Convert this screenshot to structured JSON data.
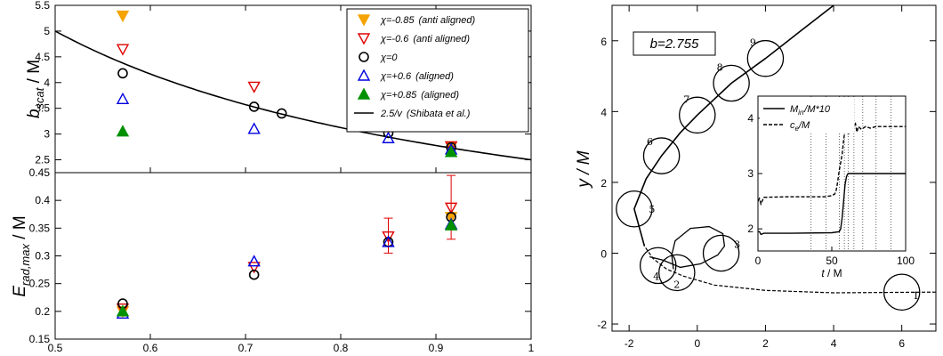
{
  "colors": {
    "chi_m085": "#f5a300",
    "chi_m06": "#e00000",
    "chi_0": "#000000",
    "chi_p06": "#0000e0",
    "chi_p085": "#009000",
    "curve": "#000000"
  },
  "chart_data": [
    {
      "id": "b_scat",
      "type": "scatter",
      "ylabel_main": "b",
      "ylabel_sub": "scat",
      "ylabel_tail": " / M",
      "xlim": [
        0.5,
        1.0
      ],
      "ylim": [
        2.25,
        5.5
      ],
      "yticks": [
        "2.5",
        "3",
        "3.5",
        "4",
        "4.5",
        "5",
        "5.5"
      ],
      "ytick_values": [
        2.5,
        3,
        3.5,
        4,
        4.5,
        5,
        5.5
      ],
      "legend": [
        {
          "chi": "χ=-0.85",
          "note": "(anti aligned)",
          "marker": "tri-down-filled",
          "color_key": "chi_m085"
        },
        {
          "chi": "χ=-0.6",
          "note": "(anti aligned)",
          "marker": "tri-down-open",
          "color_key": "chi_m06"
        },
        {
          "chi": "χ=0",
          "note": "",
          "marker": "circle-open",
          "color_key": "chi_0"
        },
        {
          "chi": "χ=+0.6",
          "note": "(aligned)",
          "marker": "tri-up-open",
          "color_key": "chi_p06"
        },
        {
          "chi": "χ=+0.85",
          "note": "(aligned)",
          "marker": "tri-up-filled",
          "color_key": "chi_p085"
        },
        {
          "chi": "2.5/v",
          "note": "(Shibata et al.)",
          "marker": "line",
          "color_key": "curve"
        }
      ],
      "curve": {
        "formula": "2.5/v",
        "coef": 2.5,
        "x_range": [
          0.5,
          1.0
        ]
      },
      "series": [
        {
          "name": "χ=-0.85",
          "marker": "tri-down-filled",
          "color_key": "chi_m085",
          "x": [
            0.571,
            0.85,
            0.916
          ],
          "y": [
            5.3,
            3.13,
            2.76
          ]
        },
        {
          "name": "χ=-0.6",
          "marker": "tri-down-open",
          "color_key": "chi_m06",
          "x": [
            0.571,
            0.709,
            0.85,
            0.916
          ],
          "y": [
            4.65,
            3.92,
            3.13,
            2.76
          ]
        },
        {
          "name": "χ=0",
          "marker": "circle-open",
          "color_key": "chi_0",
          "x": [
            0.571,
            0.709,
            0.738,
            0.85,
            0.916
          ],
          "y": [
            4.18,
            3.53,
            3.4,
            3.02,
            2.74
          ]
        },
        {
          "name": "χ=+0.6",
          "marker": "tri-up-open",
          "color_key": "chi_p06",
          "x": [
            0.571,
            0.709,
            0.85,
            0.916
          ],
          "y": [
            3.68,
            3.1,
            2.92,
            2.7
          ]
        },
        {
          "name": "χ=+0.85",
          "marker": "tri-up-filled",
          "color_key": "chi_p085",
          "x": [
            0.571,
            0.916
          ],
          "y": [
            3.05,
            2.65
          ]
        }
      ]
    },
    {
      "id": "E_rad",
      "type": "scatter",
      "ylabel_main": "E",
      "ylabel_sub": "rad,max",
      "ylabel_tail": " / M",
      "xlim": [
        0.5,
        1.0
      ],
      "ylim": [
        0.15,
        0.45
      ],
      "xticks": [
        "0.5",
        "0.6",
        "0.7",
        "0.8",
        "0.9",
        "1"
      ],
      "xtick_values": [
        0.5,
        0.6,
        0.7,
        0.8,
        0.9,
        1.0
      ],
      "yticks": [
        "0.15",
        "0.2",
        "0.25",
        "0.3",
        "0.35",
        "0.4",
        "0.45"
      ],
      "ytick_values": [
        0.15,
        0.2,
        0.25,
        0.3,
        0.35,
        0.4,
        0.45
      ],
      "error_bars": [
        {
          "x": 0.85,
          "low": 0.305,
          "high": 0.368,
          "color_key": "chi_m06"
        },
        {
          "x": 0.916,
          "low": 0.33,
          "high": 0.445,
          "color_key": "chi_m06"
        }
      ],
      "series": [
        {
          "name": "χ=-0.85",
          "marker": "tri-down-filled",
          "color_key": "chi_m085",
          "x": [
            0.571,
            0.916
          ],
          "y": [
            0.2,
            0.37
          ]
        },
        {
          "name": "χ=-0.6",
          "marker": "tri-down-open",
          "color_key": "chi_m06",
          "x": [
            0.571,
            0.709,
            0.85,
            0.916
          ],
          "y": [
            0.205,
            0.28,
            0.335,
            0.387
          ]
        },
        {
          "name": "χ=0",
          "marker": "circle-open",
          "color_key": "chi_0",
          "x": [
            0.571,
            0.709,
            0.85,
            0.916
          ],
          "y": [
            0.214,
            0.266,
            0.325,
            0.37
          ]
        },
        {
          "name": "χ=+0.6",
          "marker": "tri-up-open",
          "color_key": "chi_p06",
          "x": [
            0.571,
            0.709,
            0.85,
            0.916
          ],
          "y": [
            0.196,
            0.29,
            0.325,
            0.357
          ]
        },
        {
          "name": "χ=+0.85",
          "marker": "tri-up-filled",
          "color_key": "chi_p085",
          "x": [
            0.571,
            0.916
          ],
          "y": [
            0.2,
            0.355
          ]
        }
      ]
    },
    {
      "id": "trajectory",
      "type": "line",
      "label_box": "b=2.755",
      "xlabel": "",
      "ylabel": "y / M",
      "xlim": [
        -2.5,
        7
      ],
      "ylim": [
        -2.2,
        7
      ],
      "xticks": [
        "-2",
        "0",
        "2",
        "4",
        "6"
      ],
      "xtick_values": [
        -2,
        0,
        2,
        4,
        6
      ],
      "yticks": [
        "-2",
        "0",
        "2",
        "4",
        "6"
      ],
      "ytick_values": [
        -2,
        0,
        2,
        4,
        6
      ],
      "circle_radius": 0.25,
      "markers": [
        {
          "label": "1",
          "x": 6.0,
          "y": -1.1
        },
        {
          "label": "2",
          "x": -0.6,
          "y": -0.55
        },
        {
          "label": "3",
          "x": 0.7,
          "y": 0.0
        },
        {
          "label": "4",
          "x": -1.15,
          "y": -0.35
        },
        {
          "label": "5",
          "x": -1.85,
          "y": 1.25
        },
        {
          "label": "6",
          "x": -1.05,
          "y": 2.75
        },
        {
          "label": "7",
          "x": 0.0,
          "y": 3.9
        },
        {
          "label": "8",
          "x": 1.0,
          "y": 4.8
        },
        {
          "label": "9",
          "x": 2.0,
          "y": 5.5
        }
      ],
      "incoming_path": [
        [
          7,
          -1.1
        ],
        [
          4,
          -1.12
        ],
        [
          2,
          -1.05
        ],
        [
          0.5,
          -0.9
        ],
        [
          -0.4,
          -0.65
        ],
        [
          -0.9,
          -0.45
        ],
        [
          -1.3,
          -0.15
        ],
        [
          -1.55,
          0.2
        ]
      ],
      "outgoing_path": [
        [
          -1.55,
          0.2
        ],
        [
          -1.85,
          1.25
        ],
        [
          -1.5,
          2.1
        ],
        [
          -1.05,
          2.75
        ],
        [
          -0.5,
          3.4
        ],
        [
          0.0,
          3.9
        ],
        [
          1.0,
          4.8
        ],
        [
          2.0,
          5.5
        ],
        [
          3.0,
          6.25
        ],
        [
          4.0,
          7.0
        ]
      ],
      "loop_path": [
        [
          -1.4,
          -0.1
        ],
        [
          -1.0,
          -0.2
        ],
        [
          -0.5,
          -0.4
        ],
        [
          0.1,
          -0.3
        ],
        [
          0.6,
          -0.05
        ],
        [
          0.8,
          0.2
        ],
        [
          0.75,
          0.55
        ],
        [
          0.35,
          0.75
        ],
        [
          -0.2,
          0.7
        ],
        [
          -0.65,
          0.35
        ],
        [
          -0.75,
          -0.05
        ],
        [
          -0.7,
          -0.45
        ]
      ],
      "inset": {
        "xlim": [
          0,
          100
        ],
        "ylim": [
          1.6,
          4.4
        ],
        "xticks": [
          "0",
          "50",
          "100"
        ],
        "xtick_values": [
          0,
          50,
          100
        ],
        "yticks": [
          "2",
          "3",
          "4"
        ],
        "ytick_values": [
          2,
          3,
          4
        ],
        "xlabel_main": "t",
        "xlabel_tail": " / M",
        "vlines": [
          36,
          46,
          55,
          58.5,
          61,
          65,
          71,
          80,
          90
        ],
        "legend": [
          {
            "label": "M",
            "sub": "irr",
            "tail": "/M*10",
            "style": "solid"
          },
          {
            "label": "c",
            "sub": "e",
            "tail": "/M",
            "style": "dashed"
          }
        ],
        "series": [
          {
            "name": "M_irr/M*10",
            "style": "solid",
            "x": [
              0,
              1,
              2,
              4,
              20,
              50,
              55,
              56,
              57,
              58,
              59,
              60,
              61,
              62,
              65,
              70,
              100
            ],
            "y": [
              1.95,
              1.95,
              1.9,
              1.92,
              1.92,
              1.93,
              1.95,
              2.0,
              2.2,
              2.5,
              2.8,
              2.95,
              3.0,
              3.0,
              3.0,
              3.0,
              3.0
            ]
          },
          {
            "name": "c_e/M",
            "style": "dashed",
            "x": [
              0,
              1,
              2,
              4,
              20,
              45,
              50,
              52,
              53,
              54,
              55,
              56,
              57,
              58,
              59,
              60,
              61,
              62,
              63,
              64,
              65,
              66,
              67,
              68,
              70,
              73,
              76,
              80,
              100
            ],
            "y": [
              2.5,
              2.55,
              2.45,
              2.57,
              2.58,
              2.58,
              2.6,
              2.63,
              2.7,
              2.85,
              3.05,
              3.2,
              3.35,
              3.6,
              3.8,
              3.9,
              3.7,
              3.75,
              3.95,
              3.8,
              3.85,
              3.9,
              3.75,
              3.85,
              3.8,
              3.85,
              3.82,
              3.85,
              3.85
            ]
          }
        ]
      }
    }
  ]
}
